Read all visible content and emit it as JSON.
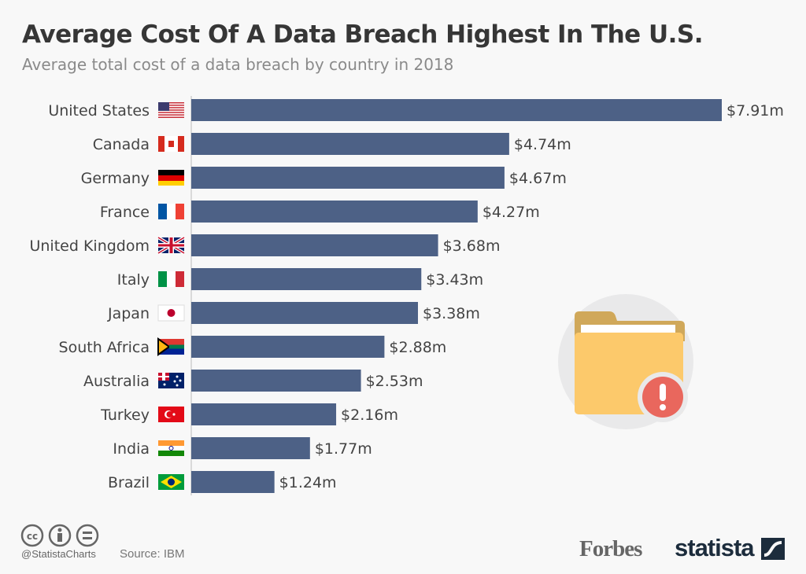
{
  "chart_data": {
    "type": "bar",
    "orientation": "horizontal",
    "title": "Average Cost Of A Data Breach Highest In The U.S.",
    "subtitle": "Average total cost of a data breach by country in 2018",
    "categories": [
      "United States",
      "Canada",
      "Germany",
      "France",
      "United Kingdom",
      "Italy",
      "Japan",
      "South Africa",
      "Australia",
      "Turkey",
      "India",
      "Brazil"
    ],
    "values": [
      7.91,
      4.74,
      4.67,
      4.27,
      3.68,
      3.43,
      3.38,
      2.88,
      2.53,
      2.16,
      1.77,
      1.24
    ],
    "data_labels": [
      "$7.91m",
      "$4.74m",
      "$4.67m",
      "$4.27m",
      "$3.68m",
      "$3.43m",
      "$3.38m",
      "$2.88m",
      "$2.53m",
      "$2.16m",
      "$1.77m",
      "$1.24m"
    ],
    "unit": "$m",
    "xlim": [
      0,
      7.91
    ],
    "grid": false,
    "bar_color": "#4d6186",
    "flags": [
      "us",
      "ca",
      "de",
      "fr",
      "gb",
      "it",
      "jp",
      "za",
      "au",
      "tr",
      "in",
      "br"
    ]
  },
  "footer": {
    "handle": "@StatistaCharts",
    "source": "Source: IBM",
    "license_icons": [
      "cc-icon",
      "attribution-icon",
      "no-derivatives-icon"
    ],
    "logos": {
      "forbes": "Forbes",
      "statista": "statista"
    }
  },
  "illustration": {
    "icon": "folder-alert-icon",
    "folder_color": "#fcc96b",
    "alert_color": "#e9675d"
  }
}
